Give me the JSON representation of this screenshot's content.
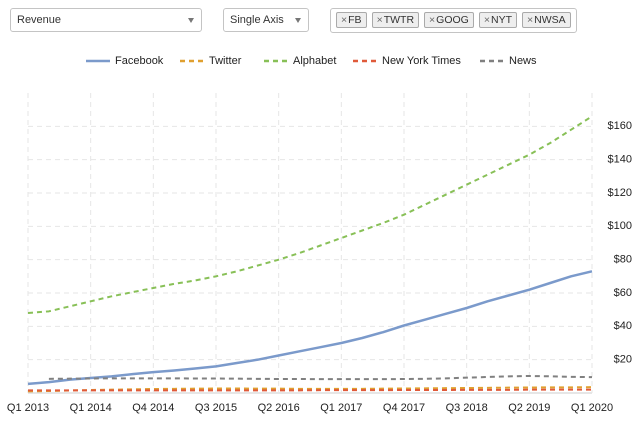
{
  "controls": {
    "metric": "Revenue",
    "axis_mode": "Single Axis",
    "tags": [
      "FB",
      "TWTR",
      "GOOG",
      "NYT",
      "NWSA"
    ]
  },
  "chart_data": {
    "type": "line",
    "categories": [
      "Q1 2013",
      null,
      null,
      "Q1 2014",
      null,
      null,
      "Q4 2014",
      null,
      null,
      "Q3 2015",
      null,
      null,
      "Q2 2016",
      null,
      null,
      "Q1 2017",
      null,
      null,
      "Q4 2017",
      null,
      null,
      "Q3 2018",
      null,
      null,
      "Q2 2019",
      null,
      null,
      "Q1 2020"
    ],
    "series": [
      {
        "name": "Facebook",
        "color": "#7b9acb",
        "dashed": false,
        "values": [
          5.5,
          6.5,
          8,
          9,
          10,
          11.3,
          12.5,
          13.5,
          14.7,
          16,
          18,
          20,
          22.5,
          25,
          27.5,
          30,
          33,
          36.5,
          40.5,
          44,
          47.5,
          51,
          55,
          58.5,
          62,
          66,
          70,
          73
        ]
      },
      {
        "name": "Twitter",
        "color": "#e0a030",
        "dashed": true,
        "values": [
          1,
          1.2,
          1.5,
          1.8,
          2,
          2.2,
          2.4,
          2.5,
          2.6,
          2.7,
          2.7,
          2.6,
          2.6,
          2.5,
          2.5,
          2.5,
          2.5,
          2.6,
          2.7,
          2.8,
          2.9,
          3,
          3.1,
          3.2,
          3.3,
          3.4,
          3.4,
          3.5
        ]
      },
      {
        "name": "Alphabet",
        "color": "#88c057",
        "dashed": true,
        "values": [
          48,
          49,
          52,
          55,
          58,
          60.5,
          63,
          65.5,
          67.5,
          70,
          73,
          76.5,
          80,
          84,
          88.5,
          93,
          97.5,
          102,
          107,
          113,
          119,
          125,
          131,
          137,
          143,
          150,
          158,
          166
        ]
      },
      {
        "name": "New York Times",
        "color": "#e05a3a",
        "dashed": true,
        "values": [
          1.6,
          1.6,
          1.6,
          1.6,
          1.6,
          1.6,
          1.6,
          1.6,
          1.6,
          1.6,
          1.6,
          1.6,
          1.6,
          1.6,
          1.7,
          1.7,
          1.7,
          1.7,
          1.8,
          1.8,
          1.8,
          1.9,
          1.9,
          1.9,
          2,
          2,
          2,
          2
        ]
      },
      {
        "name": "News",
        "color": "#808080",
        "dashed": true,
        "values": [
          null,
          8.5,
          8.6,
          8.7,
          8.8,
          8.8,
          8.8,
          8.8,
          8.7,
          8.7,
          8.6,
          8.5,
          8.4,
          8.4,
          8.3,
          8.3,
          8.3,
          8.3,
          8.4,
          8.5,
          8.8,
          9.2,
          9.6,
          10,
          10.2,
          10,
          9.7,
          9.5
        ]
      }
    ],
    "ylim": [
      0,
      180
    ],
    "yticks": [
      {
        "value": 20,
        "label": "$20"
      },
      {
        "value": 40,
        "label": "$40"
      },
      {
        "value": 60,
        "label": "$60"
      },
      {
        "value": 80,
        "label": "$80"
      },
      {
        "value": 100,
        "label": "$100"
      },
      {
        "value": 120,
        "label": "$120"
      },
      {
        "value": 140,
        "label": "$140"
      },
      {
        "value": 160,
        "label": "$160"
      }
    ],
    "grid": true,
    "legend": "top"
  }
}
